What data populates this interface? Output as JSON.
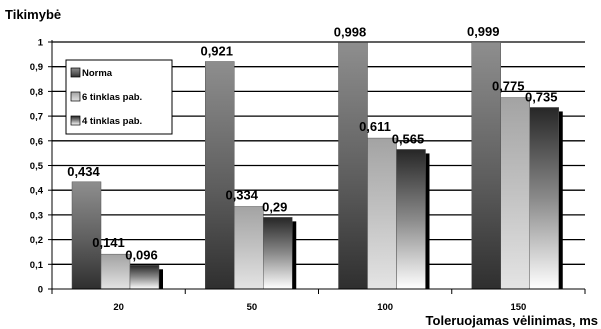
{
  "chart_data": {
    "type": "bar",
    "title": "",
    "ylabel": "Tikimybė",
    "xlabel": "Toleruojamas vėlinimas, ms",
    "categories": [
      "20",
      "50",
      "100",
      "150"
    ],
    "series": [
      {
        "name": "Norma",
        "values": [
          0.434,
          0.921,
          0.998,
          0.999
        ],
        "labels": [
          "0,434",
          "0,921",
          "0,998",
          "0,999"
        ]
      },
      {
        "name": "6 tinklas pab.",
        "values": [
          0.141,
          0.334,
          0.611,
          0.775
        ],
        "labels": [
          "0,141",
          "0,334",
          "0,611",
          "0,775"
        ]
      },
      {
        "name": "4 tinklas pab.",
        "values": [
          0.096,
          0.29,
          0.565,
          0.735
        ],
        "labels": [
          "0,096",
          "0,29",
          "0,565",
          "0,735"
        ]
      }
    ],
    "yticks": [
      "0",
      "0,1",
      "0,2",
      "0,3",
      "0,4",
      "0,5",
      "0,6",
      "0,7",
      "0,8",
      "0,9",
      "1"
    ],
    "ylim": [
      0,
      1
    ],
    "grid": true,
    "legend_position": "top-left",
    "colors": {
      "grid": "#000000",
      "axis": "#000000",
      "shadow": "#000000"
    }
  }
}
